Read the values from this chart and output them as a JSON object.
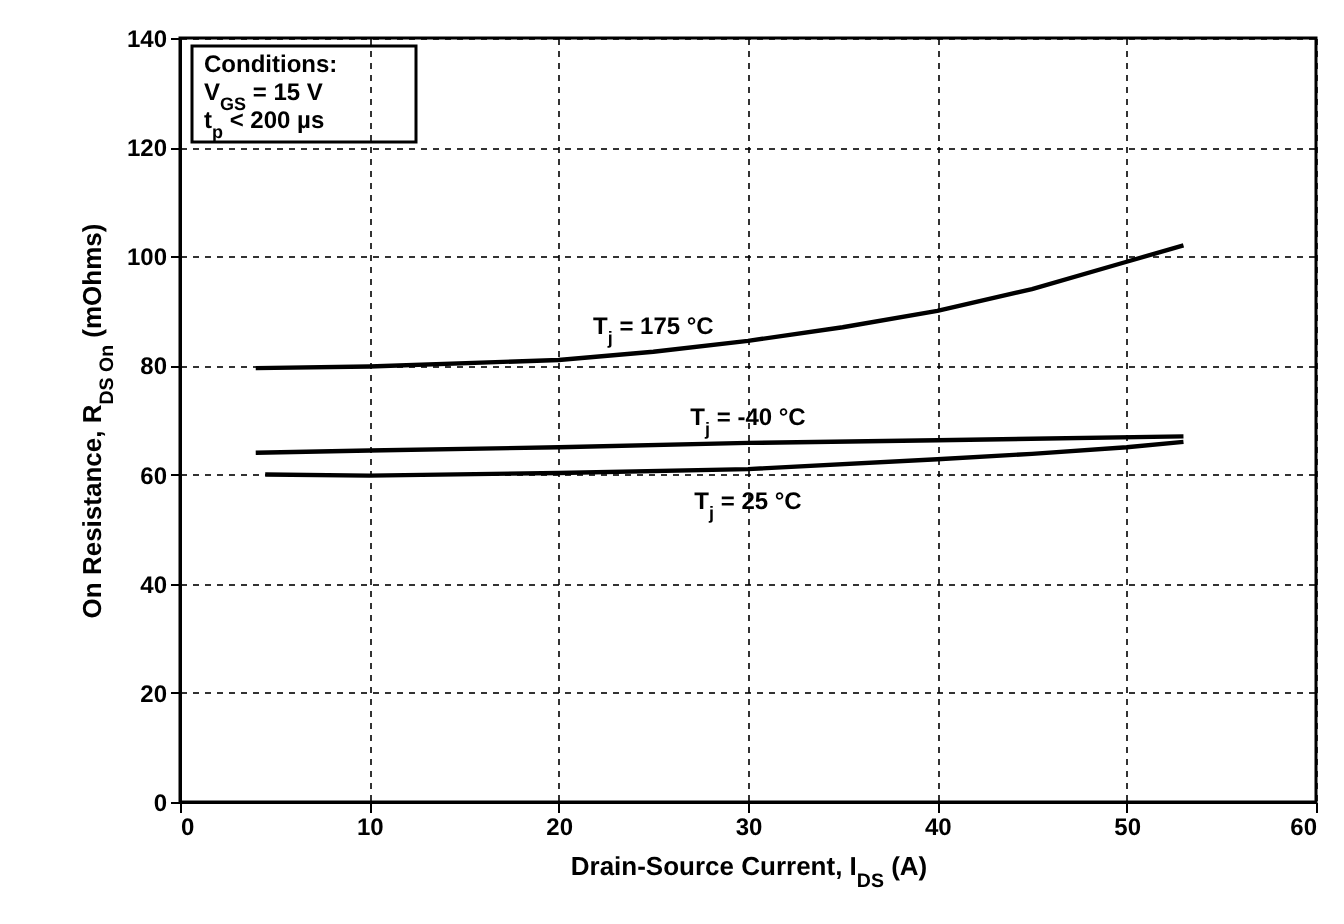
{
  "chart_data": {
    "type": "line",
    "xlabel": "Drain-Source Current, I$_{DS}$ (A)",
    "ylabel": "On Resistance, R$_{DS On}$ (mOhms)",
    "xlim": [
      0,
      60
    ],
    "xticks": [
      0,
      10,
      20,
      30,
      40,
      50,
      60
    ],
    "ylim": [
      0,
      140
    ],
    "yticks": [
      0,
      20,
      40,
      60,
      80,
      100,
      120,
      140
    ],
    "grid": true,
    "series": [
      {
        "name": "T$_{j}$ = 175 °C",
        "color": "#000000",
        "x": [
          4,
          10,
          20,
          25,
          30,
          35,
          40,
          45,
          50,
          53
        ],
        "values": [
          79.5,
          79.8,
          81,
          82.5,
          84.5,
          87,
          90,
          94,
          99,
          102
        ]
      },
      {
        "name": "T$_{j}$ = -40 °C",
        "color": "#000000",
        "x": [
          4,
          10,
          20,
          30,
          40,
          53
        ],
        "values": [
          64,
          64.4,
          65,
          65.8,
          66.3,
          67
        ]
      },
      {
        "name": "T$_{j}$ = 25 °C",
        "color": "#000000",
        "x": [
          4.5,
          10,
          20,
          30,
          40,
          45,
          50,
          53
        ],
        "values": [
          60,
          59.8,
          60.3,
          61,
          62.8,
          63.8,
          65,
          66
        ]
      }
    ],
    "annotations": [
      "Conditions:",
      "V$_{GS}$ = 15 V",
      "t$_{p}$ < 200 µs"
    ]
  }
}
